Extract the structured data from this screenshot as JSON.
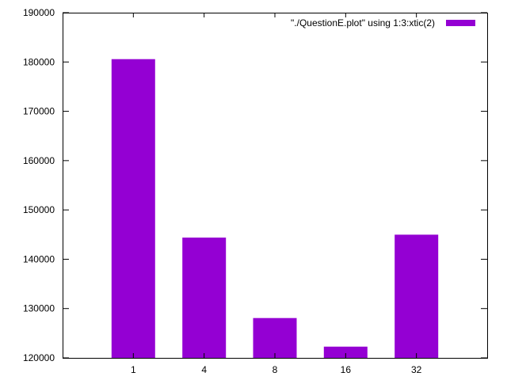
{
  "chart_data": {
    "type": "bar",
    "categories": [
      "1",
      "4",
      "8",
      "16",
      "32"
    ],
    "series": [
      {
        "name": "\"./QuestionE.plot\" using 1:3:xtic(2)",
        "values": [
          180500,
          144300,
          128000,
          122200,
          144900
        ],
        "color": "#9400d3"
      }
    ],
    "ylim": [
      120000,
      190000
    ],
    "yticks": [
      120000,
      130000,
      140000,
      150000,
      160000,
      170000,
      180000,
      190000
    ],
    "ytick_labels": [
      "120000",
      "130000",
      "140000",
      "150000",
      "160000",
      "170000",
      "180000",
      "190000"
    ],
    "grid": false,
    "legend_position": "top-right",
    "title": "",
    "xlabel": "",
    "ylabel": ""
  }
}
